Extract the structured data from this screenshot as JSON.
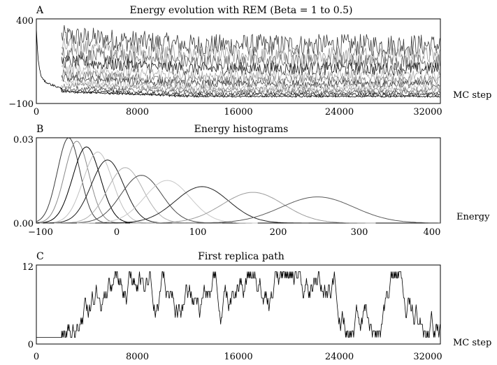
{
  "chart_data": [
    {
      "panel_label": "A",
      "type": "line",
      "title": "Energy evolution with REM (Beta = 1 to 0.5)",
      "xlabel": "MC step",
      "ylabel": "",
      "xlim": [
        0,
        32000
      ],
      "ylim": [
        -100,
        400
      ],
      "x_ticks": [
        "0",
        "8000",
        "16000",
        "24000",
        "32000"
      ],
      "y_ticks": [
        "−100",
        "400"
      ],
      "grid": false,
      "replica_exchange_start_step": 2000,
      "series_count": 12,
      "initial_energy": 300,
      "series_mean_energy": [
        -58,
        -48,
        -35,
        -20,
        -5,
        15,
        35,
        65,
        105,
        145,
        185,
        245
      ],
      "series_fluctuation": [
        10,
        12,
        14,
        17,
        20,
        24,
        28,
        34,
        40,
        48,
        56,
        66
      ],
      "series_colors": [
        "#000000",
        "#222222",
        "#5a5a5a",
        "#8a8a8a",
        "#b5b5b5",
        "#444444",
        "#777777",
        "#aaaaaa",
        "#1e1e1e",
        "#686868",
        "#9a9a9a",
        "#3a3a3a"
      ]
    },
    {
      "panel_label": "B",
      "type": "line",
      "title": "Energy histograms",
      "xlabel": "Energy",
      "ylabel": "",
      "xlim": [
        -100,
        400
      ],
      "ylim": [
        0,
        0.03
      ],
      "x_ticks": [
        "−100",
        "0",
        "100",
        "200",
        "300",
        "400"
      ],
      "y_ticks": [
        "0.00",
        "0.03"
      ],
      "grid": false,
      "series": [
        {
          "peak_energy": -60,
          "peak_density": 0.03,
          "width": 14,
          "color": "#3c3c3c"
        },
        {
          "peak_energy": -50,
          "peak_density": 0.0288,
          "width": 15,
          "color": "#8a8a8a"
        },
        {
          "peak_energy": -38,
          "peak_density": 0.0268,
          "width": 17,
          "color": "#000000"
        },
        {
          "peak_energy": -24,
          "peak_density": 0.025,
          "width": 18,
          "color": "#c0c0c0"
        },
        {
          "peak_energy": -12,
          "peak_density": 0.0222,
          "width": 20,
          "color": "#1a1a1a"
        },
        {
          "peak_energy": 10,
          "peak_density": 0.0195,
          "width": 22,
          "color": "#b0b0b0"
        },
        {
          "peak_energy": 30,
          "peak_density": 0.0168,
          "width": 25,
          "color": "#4a4a4a"
        },
        {
          "peak_energy": 62,
          "peak_density": 0.015,
          "width": 28,
          "color": "#c8c8c8"
        },
        {
          "peak_energy": 105,
          "peak_density": 0.0128,
          "width": 33,
          "color": "#202020"
        },
        {
          "peak_energy": 168,
          "peak_density": 0.0108,
          "width": 38,
          "color": "#9c9c9c"
        },
        {
          "peak_energy": 248,
          "peak_density": 0.0092,
          "width": 45,
          "color": "#5a5a5a"
        }
      ]
    },
    {
      "panel_label": "C",
      "type": "line",
      "title": "First replica path",
      "xlabel": "MC step",
      "ylabel": "",
      "xlim": [
        0,
        32000
      ],
      "ylim": [
        0,
        12
      ],
      "x_ticks": [
        "0",
        "8000",
        "16000",
        "24000",
        "32000"
      ],
      "y_ticks": [
        "0",
        "12"
      ],
      "grid": false,
      "initial_replica": 1,
      "replica_exchange_start_step": 2000,
      "replica_range": [
        1,
        11
      ]
    }
  ]
}
